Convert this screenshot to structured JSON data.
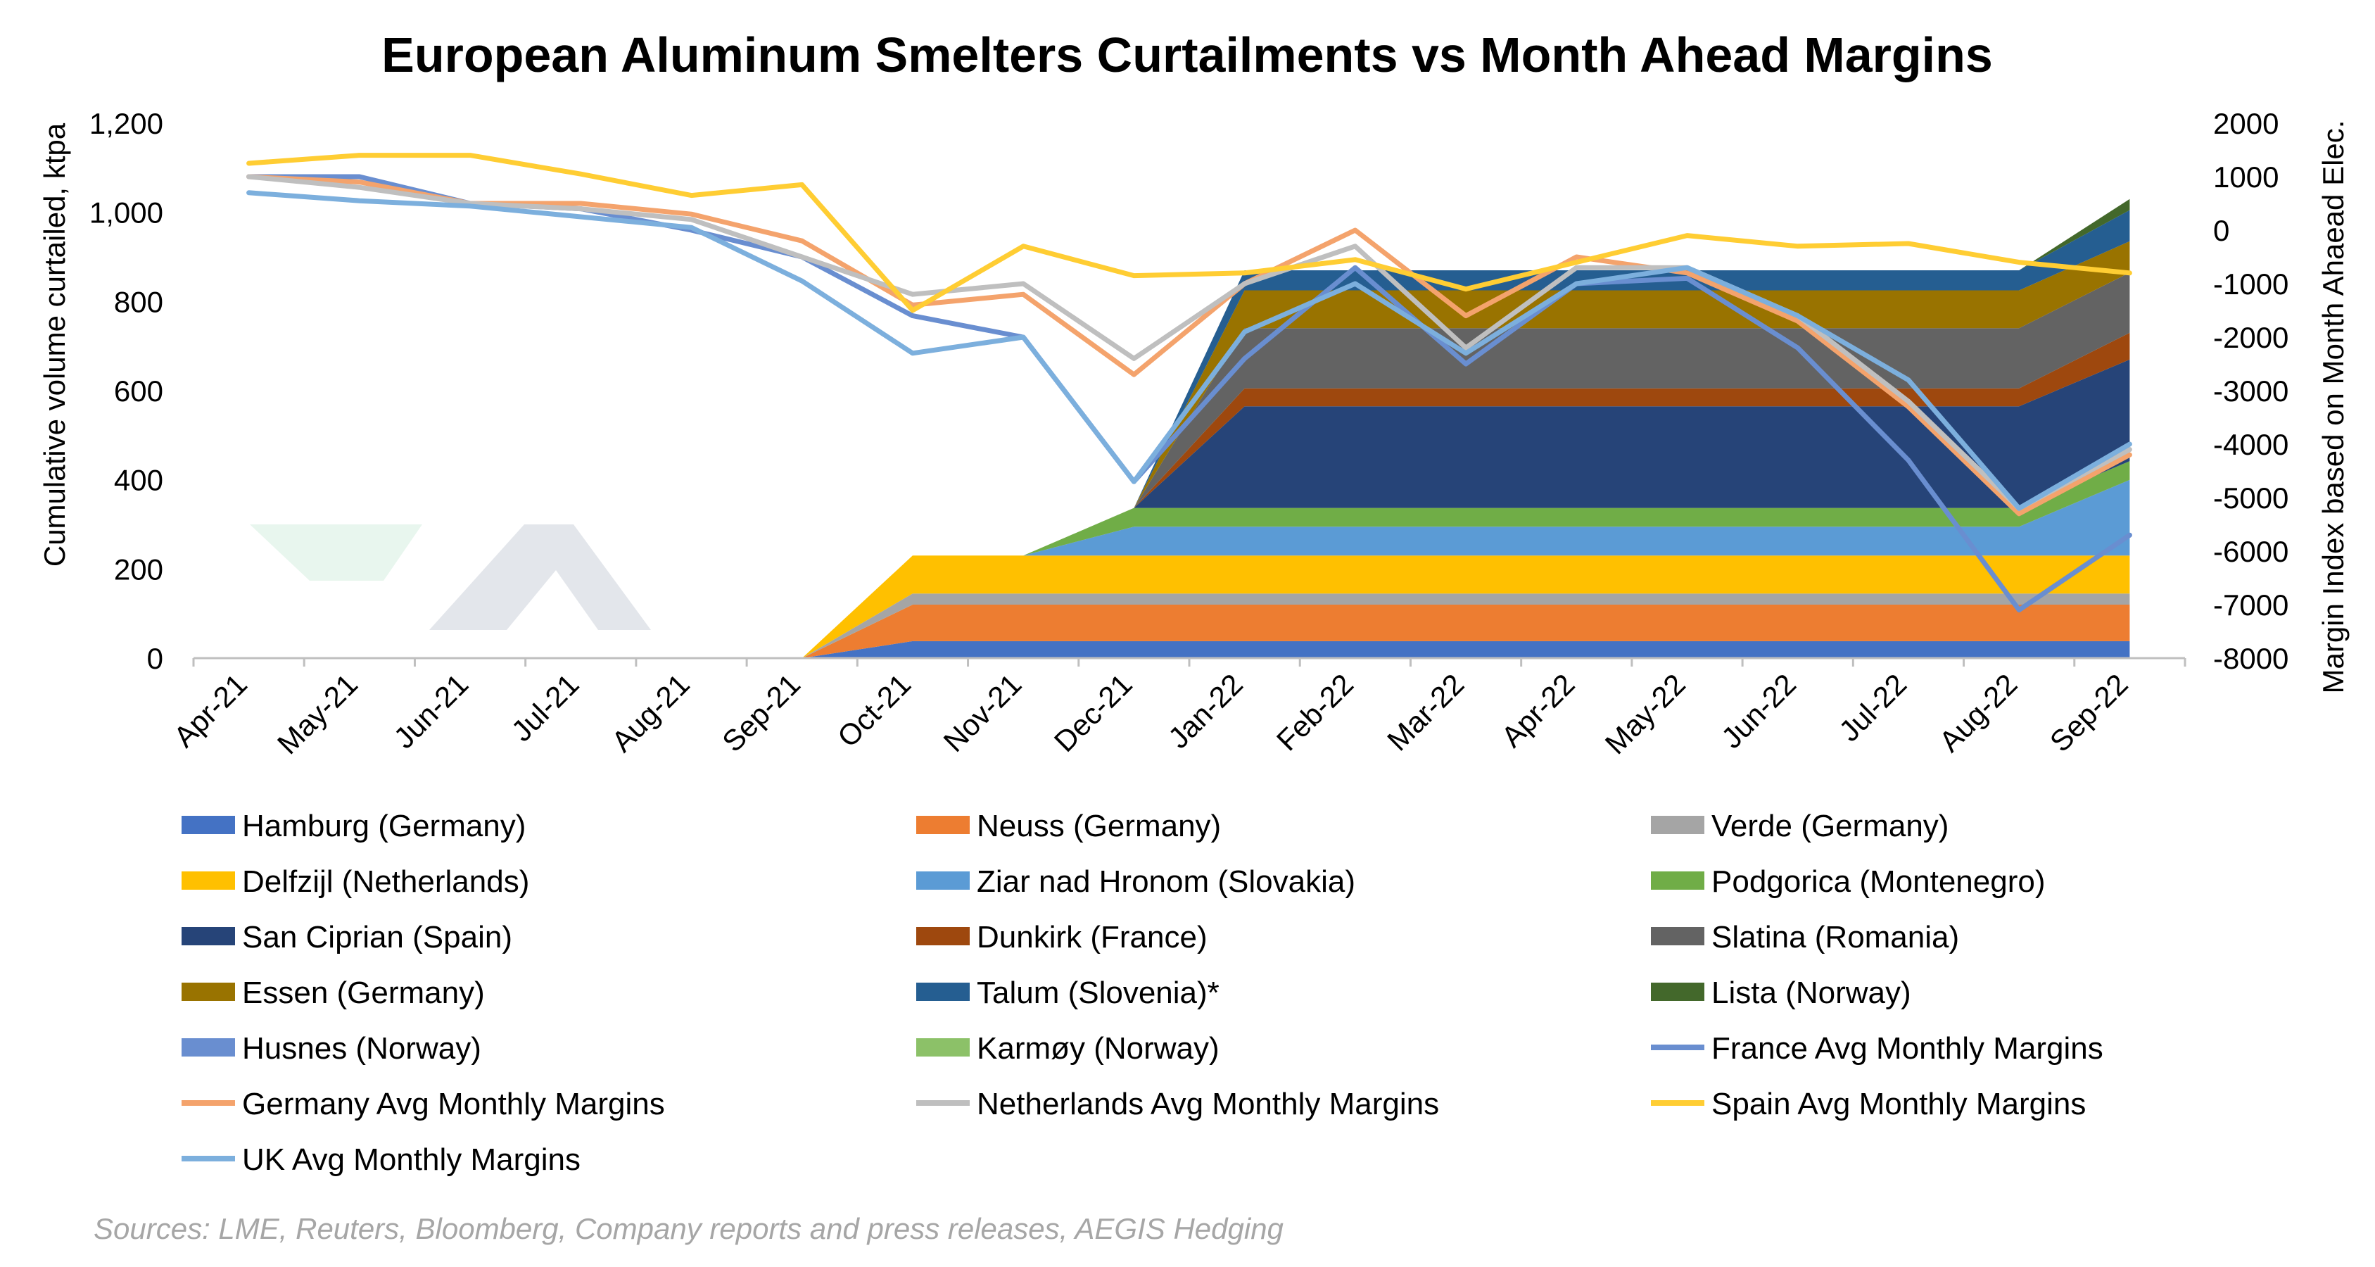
{
  "chart_data": {
    "type": "area",
    "title": "European Aluminum Smelters Curtailments vs Month Ahead Margins",
    "ylabel": "Cumulative volume curtailed, ktpa",
    "y2label": "Margin Index based on Month Ahaead Elec.",
    "source": "Sources: LME, Reuters, Bloomberg, Company reports and press releases, AEGIS Hedging",
    "categories": [
      "Apr-21",
      "May-21",
      "Jun-21",
      "Jul-21",
      "Aug-21",
      "Sep-21",
      "Oct-21",
      "Nov-21",
      "Dec-21",
      "Jan-22",
      "Feb-22",
      "Mar-22",
      "Apr-22",
      "May-22",
      "Jun-22",
      "Jul-22",
      "Aug-22",
      "Sep-22"
    ],
    "ylim": [
      0,
      1200
    ],
    "yticks": [
      0,
      200,
      400,
      600,
      800,
      1000,
      1200
    ],
    "ytick_labels": [
      "0",
      "200",
      "400",
      "600",
      "800",
      "1,000",
      "1,200"
    ],
    "y2lim": [
      -8000,
      2000
    ],
    "y2ticks": [
      -8000,
      -7000,
      -6000,
      -5000,
      -4000,
      -3000,
      -2000,
      -1000,
      0,
      1000,
      2000
    ],
    "y2tick_labels": [
      "-8000",
      "-7000",
      "-6000",
      "-5000",
      "-4000",
      "-3000",
      "-2000",
      "-1000",
      "0",
      "1000",
      "2000"
    ],
    "grid": false,
    "legend_position": "bottom",
    "area_series": [
      {
        "name": "Hamburg (Germany)",
        "color": "#4472C4",
        "values": [
          0,
          0,
          0,
          0,
          0,
          0,
          38,
          38,
          38,
          38,
          38,
          38,
          38,
          38,
          38,
          38,
          38,
          38
        ]
      },
      {
        "name": "Neuss (Germany)",
        "color": "#ED7D31",
        "values": [
          0,
          0,
          0,
          0,
          0,
          0,
          82,
          82,
          82,
          82,
          82,
          82,
          82,
          82,
          82,
          82,
          82,
          82
        ]
      },
      {
        "name": "Verde (Germany)",
        "color": "#A5A5A5",
        "values": [
          0,
          0,
          0,
          0,
          0,
          0,
          25,
          25,
          25,
          25,
          25,
          25,
          25,
          25,
          25,
          25,
          25,
          25
        ]
      },
      {
        "name": "Delfzijl (Netherlands)",
        "color": "#FFC000",
        "values": [
          0,
          0,
          0,
          0,
          0,
          0,
          85,
          85,
          85,
          85,
          85,
          85,
          85,
          85,
          85,
          85,
          85,
          85
        ]
      },
      {
        "name": "Ziar nad Hronom (Slovakia)",
        "color": "#5B9BD5",
        "values": [
          0,
          0,
          0,
          0,
          0,
          0,
          0,
          0,
          65,
          65,
          65,
          65,
          65,
          65,
          65,
          65,
          65,
          170
        ]
      },
      {
        "name": "Podgorica (Montenegro)",
        "color": "#70AD47",
        "values": [
          0,
          0,
          0,
          0,
          0,
          0,
          0,
          0,
          42,
          42,
          42,
          42,
          42,
          42,
          42,
          42,
          42,
          42
        ]
      },
      {
        "name": "San Ciprian (Spain)",
        "color": "#264478",
        "values": [
          0,
          0,
          0,
          0,
          0,
          0,
          0,
          0,
          0,
          228,
          228,
          228,
          228,
          228,
          228,
          228,
          228,
          228
        ]
      },
      {
        "name": "Dunkirk (France)",
        "color": "#9E480E",
        "values": [
          0,
          0,
          0,
          0,
          0,
          0,
          0,
          0,
          0,
          40,
          40,
          40,
          40,
          40,
          40,
          40,
          40,
          60
        ]
      },
      {
        "name": "Slatina (Romania)",
        "color": "#636363",
        "values": [
          0,
          0,
          0,
          0,
          0,
          0,
          0,
          0,
          0,
          135,
          135,
          135,
          135,
          135,
          135,
          135,
          135,
          135
        ]
      },
      {
        "name": "Essen (Germany)",
        "color": "#997300",
        "values": [
          0,
          0,
          0,
          0,
          0,
          0,
          0,
          0,
          0,
          85,
          85,
          85,
          85,
          85,
          85,
          85,
          85,
          70
        ]
      },
      {
        "name": "Talum (Slovenia)*",
        "color": "#255E91",
        "values": [
          0,
          0,
          0,
          0,
          0,
          0,
          0,
          0,
          0,
          45,
          45,
          45,
          45,
          45,
          45,
          45,
          45,
          70
        ]
      },
      {
        "name": "Lista (Norway)",
        "color": "#43682B",
        "values": [
          0,
          0,
          0,
          0,
          0,
          0,
          0,
          0,
          0,
          0,
          0,
          0,
          0,
          0,
          0,
          0,
          0,
          25
        ]
      },
      {
        "name": "Husnes (Norway)",
        "color": "#698ED0",
        "values": [
          0,
          0,
          0,
          0,
          0,
          0,
          0,
          0,
          0,
          0,
          0,
          0,
          0,
          0,
          0,
          0,
          0,
          0
        ]
      },
      {
        "name": "Karmøy (Norway)",
        "color": "#8CC168",
        "values": [
          0,
          0,
          0,
          0,
          0,
          0,
          0,
          0,
          0,
          0,
          0,
          0,
          0,
          0,
          0,
          0,
          0,
          0
        ]
      }
    ],
    "line_series": [
      {
        "name": "France Avg Monthly Margins",
        "color": "#698ED0",
        "values": [
          1000,
          1000,
          500,
          400,
          0,
          -500,
          -1600,
          -2000,
          -4700,
          -2400,
          -700,
          -2500,
          -1000,
          -900,
          -2200,
          -4300,
          -7100,
          -5700
        ]
      },
      {
        "name": "Germany Avg Monthly Margins",
        "color": "#F4A36C",
        "values": [
          1000,
          900,
          500,
          500,
          300,
          -200,
          -1400,
          -1200,
          -2700,
          -1000,
          0,
          -1600,
          -500,
          -800,
          -1700,
          -3300,
          -5300,
          -4200
        ]
      },
      {
        "name": "Netherlands Avg Monthly Margins",
        "color": "#BFBFBF",
        "values": [
          1000,
          800,
          500,
          400,
          200,
          -500,
          -1200,
          -1000,
          -2400,
          -1000,
          -300,
          -2200,
          -700,
          -700,
          -1600,
          -3200,
          -5200,
          -4100
        ]
      },
      {
        "name": "Spain Avg Monthly Margins",
        "color": "#FFCD33",
        "values": [
          1250,
          1400,
          1400,
          1050,
          650,
          850,
          -1500,
          -300,
          -850,
          -800,
          -550,
          -1100,
          -600,
          -100,
          -300,
          -250,
          -600,
          -800
        ]
      },
      {
        "name": "UK Avg Monthly Margins",
        "color": "#7CAFDD",
        "values": [
          700,
          550,
          450,
          250,
          50,
          -950,
          -2300,
          -2000,
          -4700,
          -1900,
          -1000,
          -2300,
          -1000,
          -700,
          -1600,
          -2800,
          -5200,
          -4000
        ]
      }
    ],
    "legend_columns": 3
  }
}
